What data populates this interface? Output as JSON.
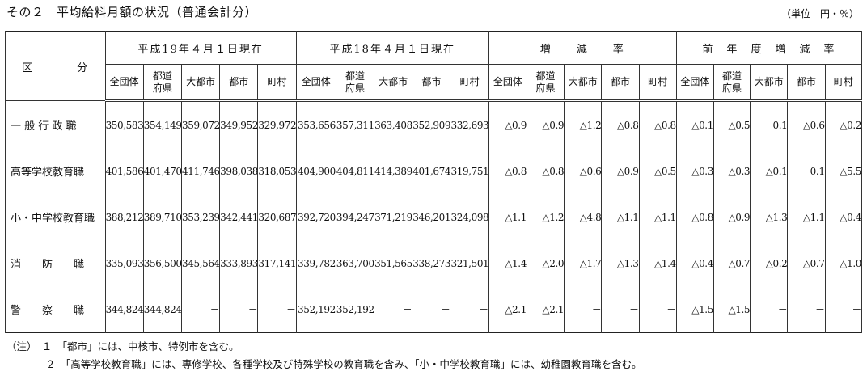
{
  "title": "その２　平均給料月額の状況（普通会計分）",
  "unit": "（単位　円・％）",
  "header": {
    "category": "区　　分",
    "category_parts": [
      "区",
      "分"
    ],
    "groups": [
      "平成19年４月１日現在",
      "平成18年４月１日現在",
      "増　　減　　率",
      "前　年　度　増　減　率"
    ],
    "subcols": [
      "全団体",
      "都道府県",
      "大都市",
      "都市",
      "町村"
    ]
  },
  "rows": [
    {
      "label": "一 般 行 政 職",
      "values": [
        "350,583",
        "354,149",
        "359,072",
        "349,952",
        "329,972",
        "353,656",
        "357,311",
        "363,408",
        "352,909",
        "332,693",
        "△0.9",
        "△0.9",
        "△1.2",
        "△0.8",
        "△0.8",
        "△0.1",
        "△0.5",
        "0.1",
        "△0.6",
        "△0.2"
      ]
    },
    {
      "label": "高等学校教育職",
      "values": [
        "401,586",
        "401,470",
        "411,746",
        "398,038",
        "318,053",
        "404,900",
        "404,811",
        "414,389",
        "401,674",
        "319,751",
        "△0.8",
        "△0.8",
        "△0.6",
        "△0.9",
        "△0.5",
        "△0.3",
        "△0.3",
        "△0.1",
        "0.1",
        "△5.5"
      ]
    },
    {
      "label": "小・中学校教育職",
      "values": [
        "388,212",
        "389,710",
        "353,239",
        "342,441",
        "320,687",
        "392,720",
        "394,247",
        "371,219",
        "346,201",
        "324,098",
        "△1.1",
        "△1.2",
        "△4.8",
        "△1.1",
        "△1.1",
        "△0.8",
        "△0.9",
        "△1.3",
        "△1.1",
        "△0.4"
      ]
    },
    {
      "label": "消　　防　　職",
      "values": [
        "335,093",
        "356,500",
        "345,564",
        "333,893",
        "317,141",
        "339,782",
        "363,700",
        "351,565",
        "338,273",
        "321,501",
        "△1.4",
        "△2.0",
        "△1.7",
        "△1.3",
        "△1.4",
        "△0.4",
        "△0.7",
        "△0.2",
        "△0.7",
        "△1.0"
      ]
    },
    {
      "label": "警　　察　　職",
      "values": [
        "344,824",
        "344,824",
        "－",
        "－",
        "－",
        "352,192",
        "352,192",
        "－",
        "－",
        "－",
        "△2.1",
        "△2.1",
        "－",
        "－",
        "－",
        "△1.5",
        "△1.5",
        "－",
        "－",
        "－"
      ]
    }
  ],
  "notes": [
    "（注）　１　「都市」には、中核市、特例市を含む。",
    "２　「高等学校教育職」には、専修学校、各種学校及び特殊学校の教育職を含み、「小・中学校教育職」には、幼稚園教育職を含む。"
  ]
}
